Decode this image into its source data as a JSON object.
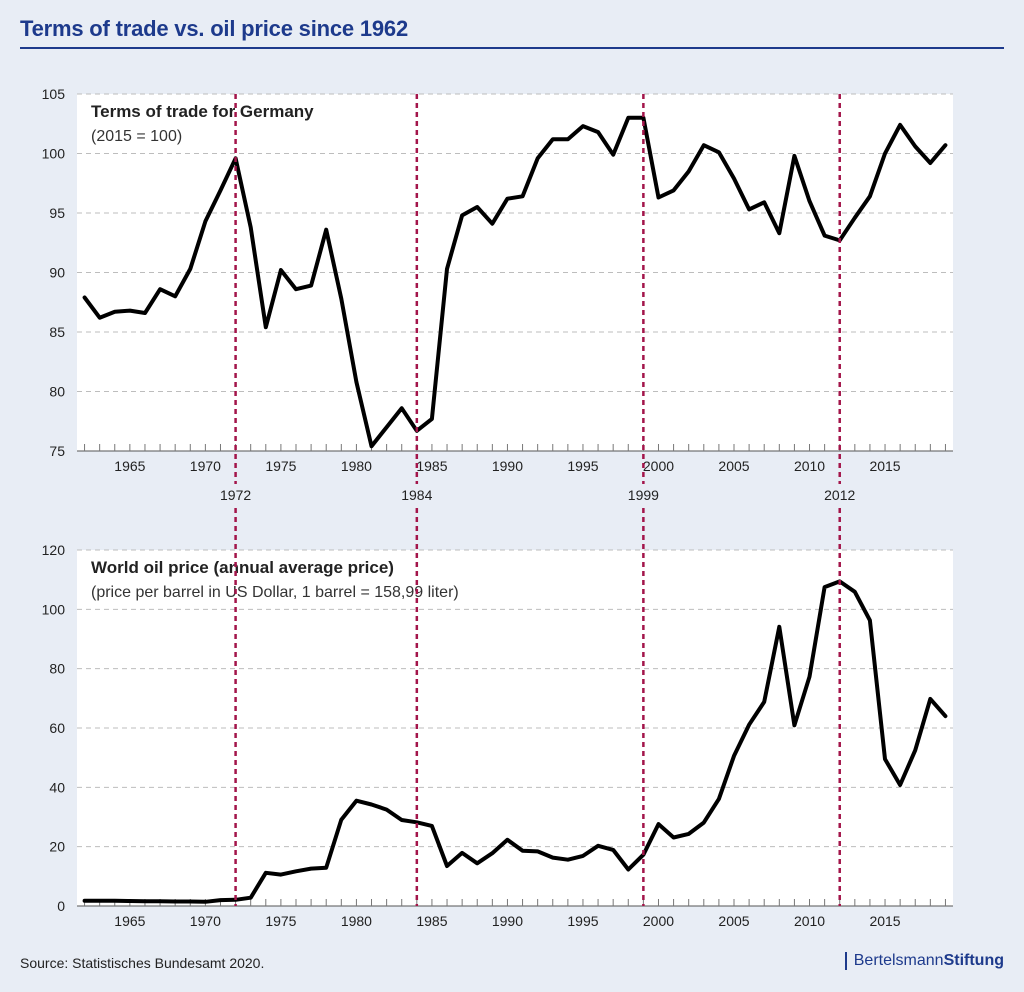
{
  "title": "Terms of trade vs. oil price since 1962",
  "source": "Source: Statistisches Bundesamt 2020.",
  "brand": {
    "part1": "Bertelsmann",
    "part2": "Stiftung"
  },
  "colors": {
    "title": "#1d3a8c",
    "marker_line": "#a3154a",
    "series": "#000000",
    "grid": "#bdbdbd",
    "background": "#e8edf5"
  },
  "chart_data": [
    {
      "type": "line",
      "title": "Terms of trade for Germany",
      "subtitle": "(2015 = 100)",
      "xlabel": "",
      "ylabel": "",
      "xlim": [
        1961.5,
        2019.5
      ],
      "ylim": [
        75,
        105
      ],
      "yticks": [
        75,
        80,
        85,
        90,
        95,
        100,
        105
      ],
      "xticks": [
        1965,
        1970,
        1975,
        1980,
        1985,
        1990,
        1995,
        2000,
        2005,
        2010,
        2015
      ],
      "grid": true,
      "x": [
        1962,
        1963,
        1964,
        1965,
        1966,
        1967,
        1968,
        1969,
        1970,
        1971,
        1972,
        1973,
        1974,
        1975,
        1976,
        1977,
        1978,
        1979,
        1980,
        1981,
        1982,
        1983,
        1984,
        1985,
        1986,
        1987,
        1988,
        1989,
        1990,
        1991,
        1992,
        1993,
        1994,
        1995,
        1996,
        1997,
        1998,
        1999,
        2000,
        2001,
        2002,
        2003,
        2004,
        2005,
        2006,
        2007,
        2008,
        2009,
        2010,
        2011,
        2012,
        2013,
        2014,
        2015,
        2016,
        2017,
        2018,
        2019
      ],
      "series": [
        {
          "name": "Terms of trade",
          "values": [
            87.9,
            86.2,
            86.7,
            86.8,
            86.6,
            88.6,
            88.0,
            90.3,
            94.3,
            96.9,
            99.6,
            93.8,
            85.4,
            90.2,
            88.6,
            88.9,
            93.6,
            87.8,
            80.8,
            75.4,
            77.0,
            78.6,
            76.7,
            77.7,
            90.3,
            94.8,
            95.5,
            94.1,
            96.2,
            96.4,
            99.6,
            101.2,
            101.2,
            102.3,
            101.8,
            99.9,
            103.0,
            103.0,
            96.3,
            96.9,
            98.5,
            100.7,
            100.1,
            97.9,
            95.3,
            95.9,
            93.3,
            99.8,
            96.0,
            93.1,
            92.7,
            94.6,
            96.4,
            100.0,
            102.4,
            100.6,
            99.2,
            100.7
          ]
        }
      ],
      "marker_years": [
        1972,
        1984,
        1999,
        2012
      ]
    },
    {
      "type": "line",
      "title": "World oil price (annual average price)",
      "subtitle": "(price per barrel  in US Dollar, 1 barrel = 158,99 liter)",
      "xlabel": "",
      "ylabel": "",
      "xlim": [
        1961.5,
        2019.5
      ],
      "ylim": [
        0,
        120
      ],
      "yticks": [
        0,
        20,
        40,
        60,
        80,
        100,
        120
      ],
      "xticks": [
        1965,
        1970,
        1975,
        1980,
        1985,
        1990,
        1995,
        2000,
        2005,
        2010,
        2015
      ],
      "grid": true,
      "x": [
        1962,
        1963,
        1964,
        1965,
        1966,
        1967,
        1968,
        1969,
        1970,
        1971,
        1972,
        1973,
        1974,
        1975,
        1976,
        1977,
        1978,
        1979,
        1980,
        1981,
        1982,
        1983,
        1984,
        1985,
        1986,
        1987,
        1988,
        1989,
        1990,
        1991,
        1992,
        1993,
        1994,
        1995,
        1996,
        1997,
        1998,
        1999,
        2000,
        2001,
        2002,
        2003,
        2004,
        2005,
        2006,
        2007,
        2008,
        2009,
        2010,
        2011,
        2012,
        2013,
        2014,
        2015,
        2016,
        2017,
        2018,
        2019
      ],
      "series": [
        {
          "name": "World oil price",
          "values": [
            1.8,
            1.8,
            1.8,
            1.7,
            1.6,
            1.6,
            1.5,
            1.5,
            1.4,
            2.0,
            2.1,
            2.8,
            11.2,
            10.6,
            11.7,
            12.6,
            12.9,
            29.1,
            35.5,
            34.2,
            32.5,
            29.0,
            28.2,
            27.0,
            13.5,
            17.9,
            14.4,
            17.8,
            22.3,
            18.6,
            18.4,
            16.3,
            15.6,
            16.9,
            20.3,
            18.9,
            12.3,
            17.3,
            27.6,
            23.1,
            24.3,
            28.1,
            36.1,
            50.6,
            61.1,
            68.8,
            94.1,
            60.9,
            77.3,
            107.5,
            109.4,
            105.9,
            96.3,
            49.5,
            40.8,
            52.5,
            69.8,
            64.0
          ]
        }
      ],
      "marker_years": [
        1972,
        1984,
        1999,
        2012
      ]
    }
  ]
}
